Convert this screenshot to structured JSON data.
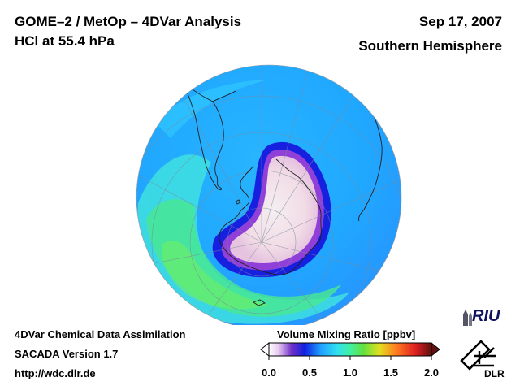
{
  "header": {
    "title_line1": "GOME–2 / MetOp – 4DVar Analysis",
    "title_line2": "HCl at 55.4 hPa",
    "date": "Sep 17, 2007",
    "region": "Southern Hemisphere"
  },
  "footer": {
    "line1": "4DVar Chemical Data Assimilation",
    "line2": "SACADA Version 1.7",
    "line3": "http://wdc.dlr.de"
  },
  "colorbar": {
    "title": "Volume Mixing Ratio [ppbv]",
    "min": 0.0,
    "max": 2.0,
    "ticks": [
      "0.0",
      "0.5",
      "1.0",
      "1.5",
      "2.0"
    ],
    "colors": [
      "#ffffff",
      "#e8c8f0",
      "#7030c8",
      "#1020e0",
      "#20a0ff",
      "#30e0f0",
      "#40f0a0",
      "#60e040",
      "#e0e020",
      "#ff8020",
      "#e02020",
      "#601010"
    ]
  },
  "logos": {
    "riu": "RIU",
    "dlr": "DLR"
  },
  "map": {
    "projection": "orthographic, south polar",
    "field": "HCl"
  }
}
